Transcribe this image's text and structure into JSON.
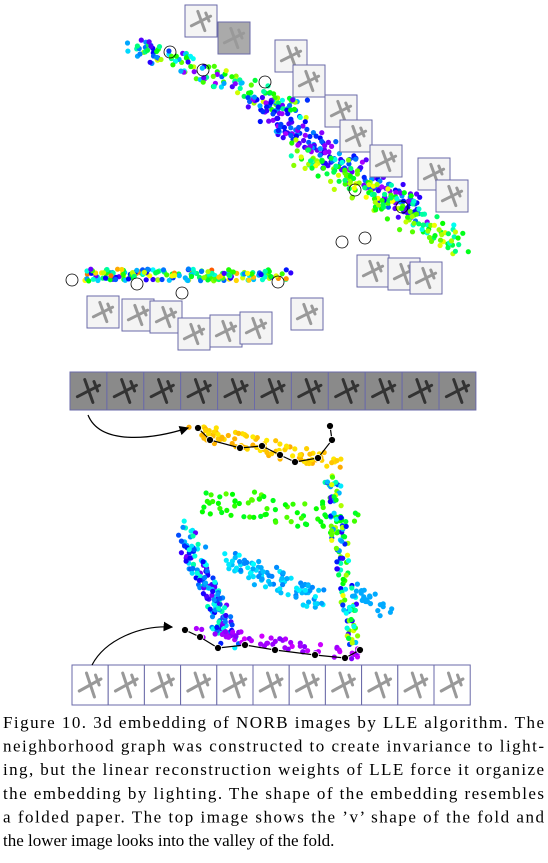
{
  "caption": {
    "lines": [
      "Figure 10. 3d embedding of NORB images by LLE algorithm. The",
      "neighborhood graph was constructed to create invariance to light-",
      "ing, but the linear reconstruction weights of LLE force it organize",
      "the embedding by lighting. The shape of the embedding resembles",
      "a folded paper. The top image shows the ’v’ shape of the fold and",
      "the lower image looks into the valley of the fold."
    ]
  }
}
